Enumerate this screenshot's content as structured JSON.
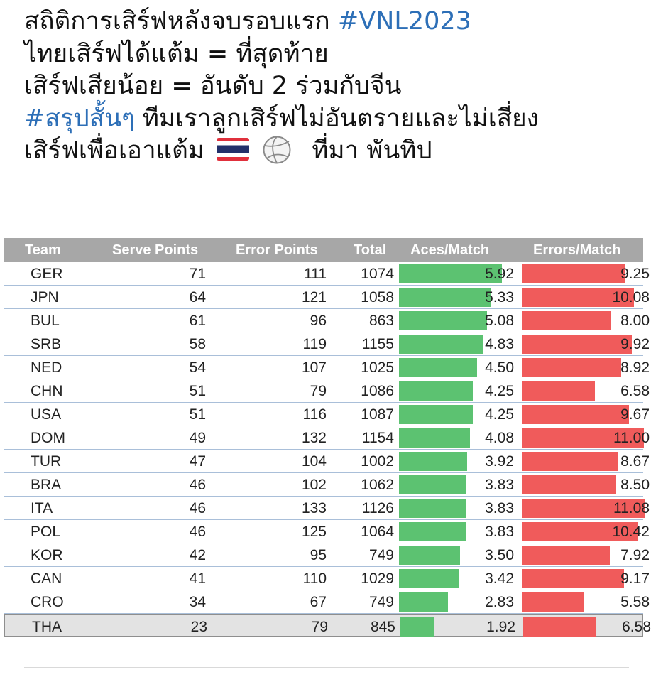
{
  "post": {
    "line1_text": "สถิติการเสิร์ฟหลังจบรอบแรก ",
    "line1_hashtag": "#VNL2023",
    "line2": "ไทยเสิร์ฟได้แต้ม = ที่สุดท้าย",
    "line3": "เสิร์ฟเสียน้อย = อันดับ 2 ร่วมกับจีน",
    "line4_hashtag": "#สรุปสั้นๆ",
    "line4_text": " ทีมเราลูกเสิร์ฟไม่อันตรายและไม่เสี่ยง",
    "line5_text": "เสิร์ฟเพื่อเอาแต้ม",
    "line5_emojis": [
      "thailand-flag-icon",
      "volleyball-icon"
    ],
    "line5_source": "ที่มา พันทิป"
  },
  "table": {
    "headers": [
      "Team",
      "Serve Points",
      "Error Points",
      "Total",
      "Aces/Match",
      "Errors/Match"
    ],
    "bar_colors": {
      "aces": "#5cc271",
      "errors": "#f05b5b"
    },
    "rows": [
      {
        "team": "GER",
        "serve": "71",
        "error": "111",
        "total": "1074",
        "aces": "5.92",
        "errors": "9.25"
      },
      {
        "team": "JPN",
        "serve": "64",
        "error": "121",
        "total": "1058",
        "aces": "5.33",
        "errors": "10.08"
      },
      {
        "team": "BUL",
        "serve": "61",
        "error": "96",
        "total": "863",
        "aces": "5.08",
        "errors": "8.00"
      },
      {
        "team": "SRB",
        "serve": "58",
        "error": "119",
        "total": "1155",
        "aces": "4.83",
        "errors": "9.92"
      },
      {
        "team": "NED",
        "serve": "54",
        "error": "107",
        "total": "1025",
        "aces": "4.50",
        "errors": "8.92"
      },
      {
        "team": "CHN",
        "serve": "51",
        "error": "79",
        "total": "1086",
        "aces": "4.25",
        "errors": "6.58"
      },
      {
        "team": "USA",
        "serve": "51",
        "error": "116",
        "total": "1087",
        "aces": "4.25",
        "errors": "9.67"
      },
      {
        "team": "DOM",
        "serve": "49",
        "error": "132",
        "total": "1154",
        "aces": "4.08",
        "errors": "11.00"
      },
      {
        "team": "TUR",
        "serve": "47",
        "error": "104",
        "total": "1002",
        "aces": "3.92",
        "errors": "8.67"
      },
      {
        "team": "BRA",
        "serve": "46",
        "error": "102",
        "total": "1062",
        "aces": "3.83",
        "errors": "8.50"
      },
      {
        "team": "ITA",
        "serve": "46",
        "error": "133",
        "total": "1126",
        "aces": "3.83",
        "errors": "11.08"
      },
      {
        "team": "POL",
        "serve": "46",
        "error": "125",
        "total": "1064",
        "aces": "3.83",
        "errors": "10.42"
      },
      {
        "team": "KOR",
        "serve": "42",
        "error": "95",
        "total": "749",
        "aces": "3.50",
        "errors": "7.92"
      },
      {
        "team": "CAN",
        "serve": "41",
        "error": "110",
        "total": "1029",
        "aces": "3.42",
        "errors": "9.17"
      },
      {
        "team": "CRO",
        "serve": "34",
        "error": "67",
        "total": "749",
        "aces": "2.83",
        "errors": "5.58"
      },
      {
        "team": "THA",
        "serve": "23",
        "error": "79",
        "total": "845",
        "aces": "1.92",
        "errors": "6.58"
      }
    ]
  }
}
